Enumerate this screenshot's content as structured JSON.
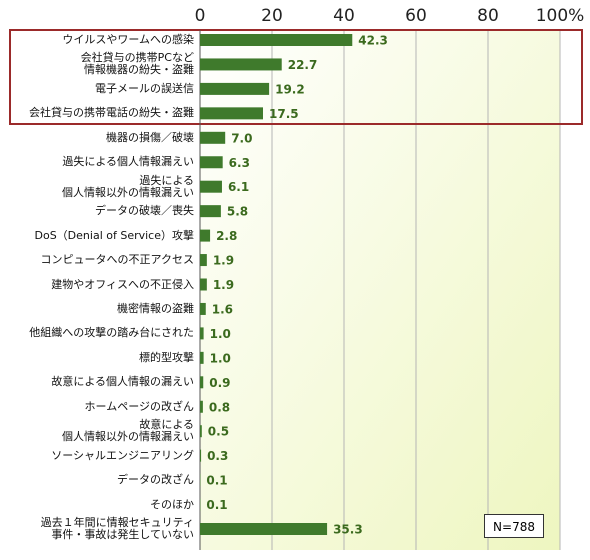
{
  "chart_data": {
    "type": "barh",
    "categories": [
      "ウイルスやワームへの感染",
      "会社貸与の携帯PCなど\n情報機器の紛失・盗難",
      "電子メールの誤送信",
      "会社貸与の携帯電話の紛失・盗難",
      "機器の損傷／破壊",
      "過失による個人情報漏えい",
      "過失による\n個人情報以外の情報漏えい",
      "データの破壊／喪失",
      "DoS（Denial of Service）攻撃",
      "コンピュータへの不正アクセス",
      "建物やオフィスへの不正侵入",
      "機密情報の盗難",
      "他組織への攻撃の踏み台にされた",
      "標的型攻撃",
      "故意による個人情報の漏えい",
      "ホームページの改ざん",
      "故意による\n個人情報以外の情報漏えい",
      "ソーシャルエンジニアリング",
      "データの改ざん",
      "そのほか",
      "過去１年間に情報セキュリティ\n事件・事故は発生していない"
    ],
    "values": [
      42.3,
      22.7,
      19.2,
      17.5,
      7.0,
      6.3,
      6.1,
      5.8,
      2.8,
      1.9,
      1.9,
      1.6,
      1.0,
      1.0,
      0.9,
      0.8,
      0.5,
      0.3,
      0.1,
      0.1,
      35.3
    ],
    "value_labels": [
      "42.3",
      "22.7",
      "19.2",
      "17.5",
      "7.0",
      "6.3",
      "6.1",
      "5.8",
      "2.8",
      "1.9",
      "1.9",
      "1.6",
      "1.0",
      "1.0",
      "0.9",
      "0.8",
      "0.5",
      "0.3",
      "0.1",
      "0.1",
      "35.3"
    ],
    "color": "#3f7a2c",
    "xlim": [
      0,
      100
    ],
    "xticks": [
      0,
      20,
      40,
      60,
      80,
      {
        "value": 100,
        "label": "100%"
      }
    ],
    "grid": true,
    "annotation": "N=788"
  }
}
